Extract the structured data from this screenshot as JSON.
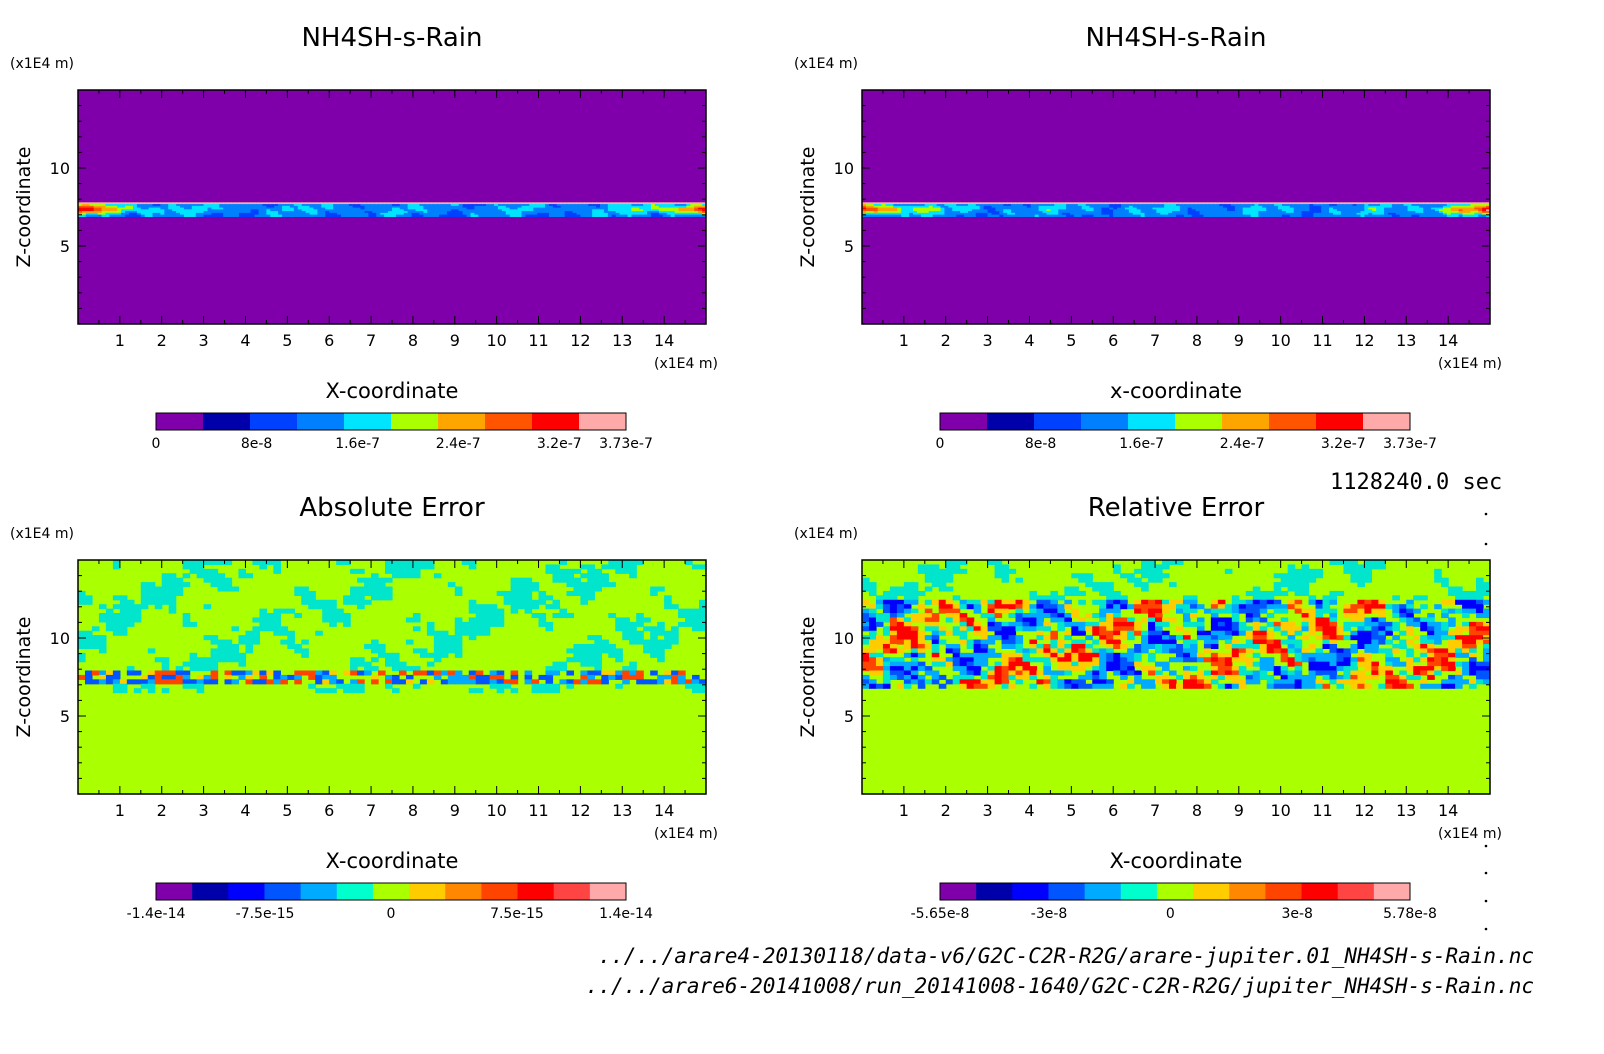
{
  "time_label": "1128240.0 sec",
  "files": [
    "../../arare4-20130118/data-v6/G2C-C2R-R2G/arare-jupiter.01_NH4SH-s-Rain.nc",
    "../../arare6-20141008/run_20141008-1640/G2C-C2R-R2G/jupiter_NH4SH-s-Rain.nc"
  ],
  "colors": {
    "purple": "#7f00aa",
    "green": "#aaff00"
  },
  "chart_data": [
    {
      "type": "heatmap",
      "title": "NH4SH-s-Rain",
      "xlabel": "X-coordinate",
      "ylabel": "Z-coordinate",
      "x_unit": "(x1E4 m)",
      "y_unit": "(x1E4 m)",
      "xlim": [
        0,
        15
      ],
      "ylim": [
        0,
        15
      ],
      "x_ticks": [
        "1",
        "2",
        "3",
        "4",
        "5",
        "6",
        "7",
        "8",
        "9",
        "10",
        "11",
        "12",
        "13",
        "14"
      ],
      "y_ticks": [
        "5",
        "10"
      ],
      "field": "layer",
      "colorbar": {
        "colors": [
          "#7f00aa",
          "#0000aa",
          "#0040ff",
          "#0080ff",
          "#00e5ff",
          "#aaff00",
          "#ffa500",
          "#ff5500",
          "#ff0000",
          "#ffaaaa"
        ],
        "tick_labels": [
          "0",
          "8e-8",
          "1.6e-7",
          "2.4e-7",
          "3.2e-7",
          "3.73e-7"
        ],
        "tick_fracs": [
          0,
          0.214,
          0.429,
          0.643,
          0.858,
          1.0
        ]
      }
    },
    {
      "type": "heatmap",
      "title": "NH4SH-s-Rain",
      "xlabel": "x-coordinate",
      "ylabel": "Z-coordinate",
      "x_unit": "(x1E4 m)",
      "y_unit": "(x1E4 m)",
      "xlim": [
        0,
        15
      ],
      "ylim": [
        0,
        15
      ],
      "x_ticks": [
        "1",
        "2",
        "3",
        "4",
        "5",
        "6",
        "7",
        "8",
        "9",
        "10",
        "11",
        "12",
        "13",
        "14"
      ],
      "y_ticks": [
        "5",
        "10"
      ],
      "field": "layer",
      "colorbar": {
        "colors": [
          "#7f00aa",
          "#0000aa",
          "#0040ff",
          "#0080ff",
          "#00e5ff",
          "#aaff00",
          "#ffa500",
          "#ff5500",
          "#ff0000",
          "#ffaaaa"
        ],
        "tick_labels": [
          "0",
          "8e-8",
          "1.6e-7",
          "2.4e-7",
          "3.2e-7",
          "3.73e-7"
        ],
        "tick_fracs": [
          0,
          0.214,
          0.429,
          0.643,
          0.858,
          1.0
        ]
      }
    },
    {
      "type": "heatmap",
      "title": "Absolute Error",
      "xlabel": "X-coordinate",
      "ylabel": "Z-coordinate",
      "x_unit": "(x1E4 m)",
      "y_unit": "(x1E4 m)",
      "xlim": [
        0,
        15
      ],
      "ylim": [
        0,
        15
      ],
      "x_ticks": [
        "1",
        "2",
        "3",
        "4",
        "5",
        "6",
        "7",
        "8",
        "9",
        "10",
        "11",
        "12",
        "13",
        "14"
      ],
      "y_ticks": [
        "5",
        "10"
      ],
      "field": "abs_error",
      "colorbar": {
        "colors": [
          "#7f00aa",
          "#0000aa",
          "#0000ff",
          "#0055ff",
          "#00aaff",
          "#00ffcc",
          "#aaff00",
          "#ffcc00",
          "#ff8800",
          "#ff4400",
          "#ff0000",
          "#ff4444",
          "#ffaaaa"
        ],
        "tick_labels": [
          "-1.4e-14",
          "-7.5e-15",
          "0",
          "7.5e-15",
          "1.4e-14"
        ],
        "tick_fracs": [
          0,
          0.232,
          0.5,
          0.768,
          1.0
        ]
      }
    },
    {
      "type": "heatmap",
      "title": "Relative Error",
      "xlabel": "X-coordinate",
      "ylabel": "Z-coordinate",
      "x_unit": "(x1E4 m)",
      "y_unit": "(x1E4 m)",
      "xlim": [
        0,
        15
      ],
      "ylim": [
        0,
        15
      ],
      "x_ticks": [
        "1",
        "2",
        "3",
        "4",
        "5",
        "6",
        "7",
        "8",
        "9",
        "10",
        "11",
        "12",
        "13",
        "14"
      ],
      "y_ticks": [
        "5",
        "10"
      ],
      "field": "rel_error",
      "colorbar": {
        "colors": [
          "#7f00aa",
          "#0000aa",
          "#0000ff",
          "#0055ff",
          "#00aaff",
          "#00ffcc",
          "#aaff00",
          "#ffcc00",
          "#ff8800",
          "#ff4400",
          "#ff0000",
          "#ff4444",
          "#ffaaaa"
        ],
        "tick_labels": [
          "-5.65e-8",
          "-3e-8",
          "0",
          "3e-8",
          "5.78e-8"
        ],
        "tick_fracs": [
          0,
          0.232,
          0.49,
          0.76,
          1.0
        ]
      }
    }
  ]
}
